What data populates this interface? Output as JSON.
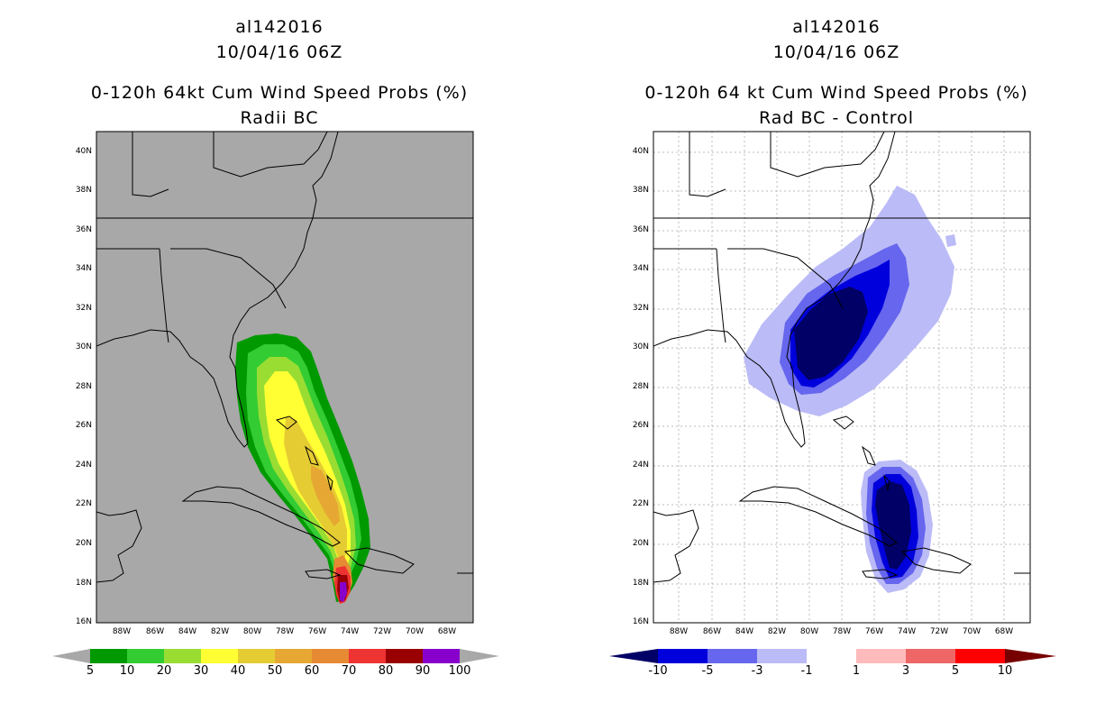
{
  "left_panel": {
    "storm_id": "al142016",
    "datetime": "10/04/16 06Z",
    "title": "0-120h 64kt Cum Wind Speed Probs (%)",
    "subtitle": "Radii BC",
    "background_color": "#a8a8a8",
    "colorbar": {
      "labels": [
        "5",
        "10",
        "20",
        "30",
        "40",
        "50",
        "60",
        "70",
        "80",
        "90",
        "100"
      ],
      "colors": [
        "#009900",
        "#33cc33",
        "#99dd33",
        "#ffff33",
        "#e6cc33",
        "#e6a833",
        "#e68a33",
        "#ee3333",
        "#990000",
        "#8800cc"
      ],
      "extend_colors": [
        "#a8a8a8",
        "#a8a8a8"
      ]
    },
    "fill_colors": {
      "c5": "#009900",
      "c10": "#33cc33",
      "c20": "#99dd33",
      "c30": "#ffff33",
      "c40": "#e6cc33",
      "c50": "#e6a833",
      "c60": "#e68a33",
      "c70": "#ee3333",
      "c80": "#990000",
      "c90": "#8800cc"
    }
  },
  "right_panel": {
    "storm_id": "al142016",
    "datetime": "10/04/16 06Z",
    "title": "0-120h 64 kt Cum Wind Speed Probs (%)",
    "subtitle": "Rad BC - Control",
    "background_color": "#ffffff",
    "colorbar": {
      "labels": [
        "-10",
        "-5",
        "-3",
        "-1",
        "1",
        "3",
        "5",
        "10"
      ],
      "colors": [
        "#0000dd",
        "#6666ee",
        "#bbbbf7",
        "#ffffff",
        "#ffbbbb",
        "#ee6666",
        "#ff0000"
      ],
      "extend_colors": [
        "#000066",
        "#770000"
      ]
    },
    "fill_colors": {
      "m1": "#bbbbf7",
      "m3": "#6666ee",
      "m5": "#0000dd",
      "m10": "#000066"
    }
  },
  "axes": {
    "lat_labels": [
      "40N",
      "38N",
      "36N",
      "34N",
      "32N",
      "30N",
      "28N",
      "26N",
      "24N",
      "22N",
      "20N",
      "18N",
      "16N"
    ],
    "lon_labels": [
      "88W",
      "86W",
      "84W",
      "82W",
      "80W",
      "78W",
      "76W",
      "74W",
      "72W",
      "70W",
      "68W"
    ]
  }
}
